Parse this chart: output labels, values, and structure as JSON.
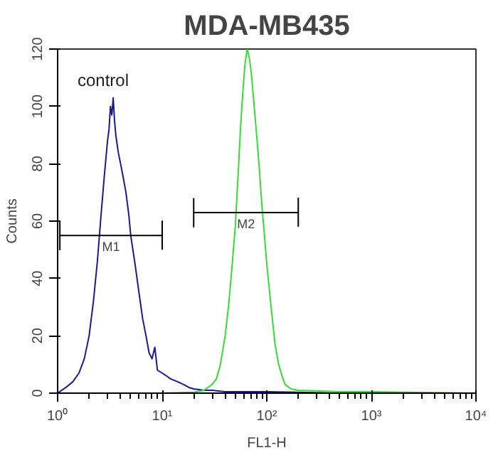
{
  "chart_data": {
    "type": "line",
    "title": "MDA-MB435",
    "xlabel": "FL1-H",
    "ylabel": "Counts",
    "log": "x",
    "grid": false,
    "legend": false,
    "marker": "none",
    "line_style": "solid",
    "xlim": [
      1,
      10000
    ],
    "ylim": [
      0,
      120
    ],
    "xticks": [
      {
        "value": 1,
        "label": "10⁰"
      },
      {
        "value": 10,
        "label": "10¹"
      },
      {
        "value": 100,
        "label": "10²"
      },
      {
        "value": 1000,
        "label": "10³"
      },
      {
        "value": 10000,
        "label": "10⁴"
      }
    ],
    "yticks": [
      0,
      20,
      40,
      60,
      80,
      100,
      120
    ],
    "series": [
      {
        "color": "#1a1a8c",
        "x": [
          1,
          1.2,
          1.4,
          1.6,
          1.8,
          2,
          2.2,
          2.4,
          2.6,
          2.8,
          3,
          3.1,
          3.2,
          3.3,
          3.4,
          3.5,
          3.6,
          3.8,
          4,
          4.2,
          4.5,
          4.8,
          5,
          5.5,
          6,
          6.5,
          7,
          7.5,
          8,
          8.5,
          9,
          10,
          11,
          12,
          14,
          16,
          18,
          20,
          25,
          30,
          40,
          60,
          100,
          200,
          500
        ],
        "values": [
          0,
          2,
          4,
          7,
          12,
          20,
          32,
          46,
          62,
          76,
          88,
          92,
          100,
          97,
          103,
          95,
          90,
          84,
          80,
          76,
          70,
          62,
          55,
          45,
          35,
          26,
          20,
          14,
          12,
          16,
          8,
          7,
          6,
          5,
          4,
          3,
          2,
          1.5,
          1,
          1,
          0.5,
          0.5,
          0.5,
          0.3,
          0
        ]
      },
      {
        "color": "#33dd33",
        "x": [
          1,
          10,
          20,
          25,
          30,
          33,
          36,
          40,
          43,
          46,
          50,
          53,
          56,
          59,
          62,
          65,
          68,
          71,
          75,
          80,
          85,
          90,
          95,
          100,
          110,
          120,
          130,
          140,
          150,
          170,
          200,
          300,
          500,
          1000,
          10000
        ],
        "values": [
          0,
          0,
          0.3,
          1,
          3,
          5,
          10,
          20,
          30,
          42,
          58,
          75,
          92,
          105,
          115,
          120,
          117,
          112,
          102,
          90,
          78,
          65,
          55,
          45,
          30,
          17,
          10,
          6,
          3,
          1.5,
          1,
          0.8,
          0.5,
          0.5,
          0
        ]
      },
      {
        "name": "M1",
        "color": "#000000",
        "x": [
          1.05,
          1.05,
          1.05,
          10,
          10,
          10
        ],
        "values": [
          60,
          50,
          55,
          55,
          60,
          50
        ]
      },
      {
        "name": "M2",
        "color": "#000000",
        "x": [
          20,
          20,
          20,
          200,
          200,
          200
        ],
        "values": [
          68,
          58,
          63,
          63,
          68,
          58
        ]
      }
    ],
    "annotations": [
      "control"
    ]
  }
}
